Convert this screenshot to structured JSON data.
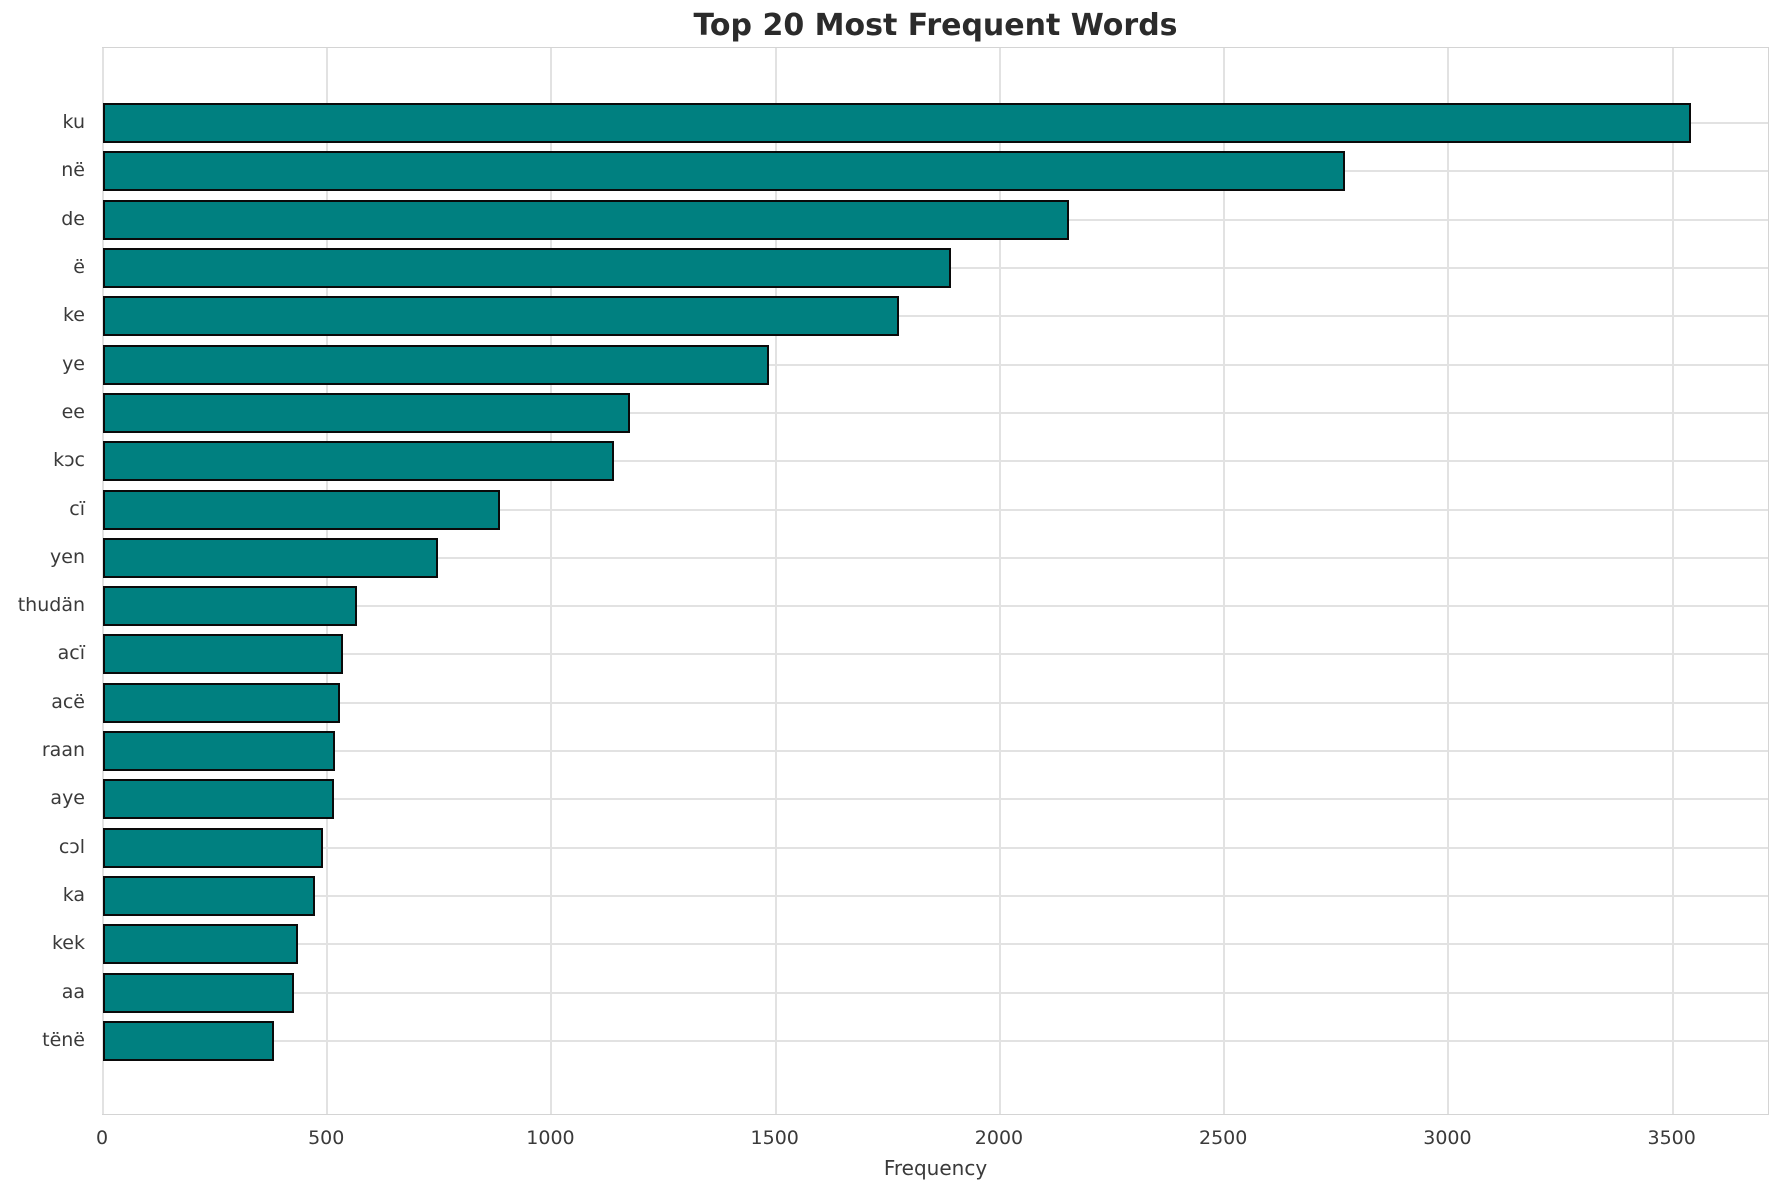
{
  "chart_data": {
    "type": "bar",
    "orientation": "horizontal",
    "title": "Top 20 Most Frequent Words",
    "xlabel": "Frequency",
    "ylabel": "",
    "categories": [
      "ku",
      "në",
      "de",
      "ë",
      "ke",
      "ye",
      "ee",
      "kɔc",
      "cï",
      "yen",
      "thudän",
      "acï",
      "acë",
      "raan",
      "aye",
      "cɔl",
      "ka",
      "kek",
      "aa",
      "tënë"
    ],
    "values": [
      3540,
      2770,
      2155,
      1890,
      1775,
      1485,
      1175,
      1140,
      885,
      747,
      566,
      535,
      528,
      517,
      514,
      490,
      472,
      435,
      425,
      381
    ],
    "xticks": [
      0,
      500,
      1000,
      1500,
      2000,
      2500,
      3000,
      3500
    ],
    "xlim": [
      0,
      3717
    ],
    "grid": true,
    "legend_position": "none",
    "colors": {
      "bar_fill": "#008080",
      "bar_edge": "#0a0a0a",
      "grid": "#e2e2e2",
      "spine": "#d4d4d4",
      "title_text": "#2b2b2b",
      "tick_text": "#3a3a3a",
      "background": "#ffffff"
    }
  }
}
